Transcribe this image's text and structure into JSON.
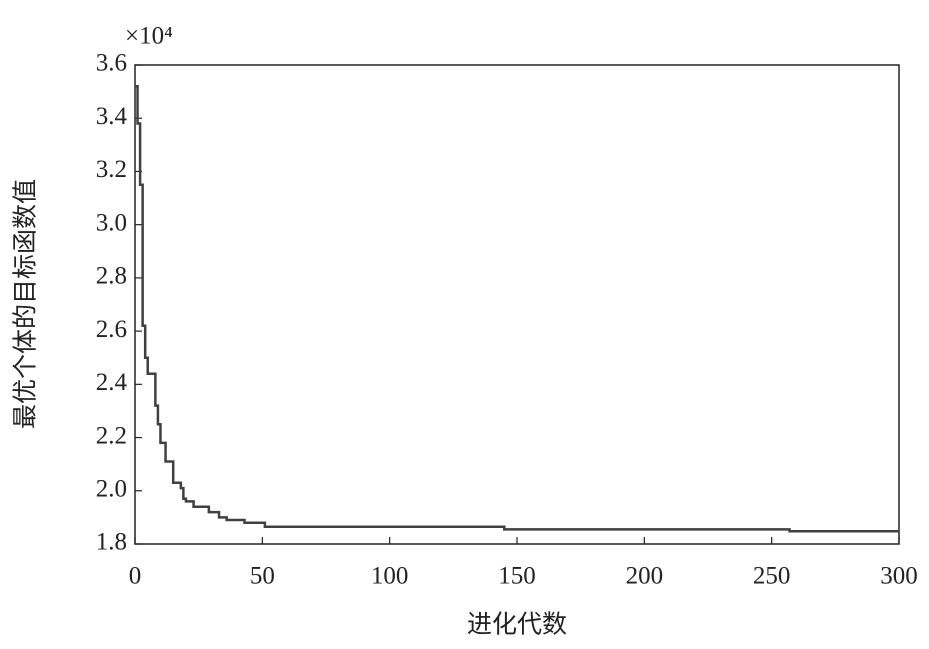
{
  "chart_data": {
    "type": "line",
    "x_label": "进化代数",
    "y_label": "最优个体的目标函数值",
    "y_multiplier": "×10⁴",
    "xlim": [
      0,
      300
    ],
    "xticks": [
      0,
      50,
      100,
      150,
      200,
      250,
      300
    ],
    "ylim": [
      1.8,
      3.6
    ],
    "yticks": [
      1.8,
      {
        "value": 2,
        "label": "2.0"
      },
      2.2,
      2.4,
      2.6,
      2.8,
      {
        "value": 3,
        "label": "3.0"
      },
      3.2,
      3.4,
      3.6
    ],
    "grid": false,
    "series": [
      {
        "color": "#404040",
        "x": [
          0,
          1,
          1,
          2,
          2,
          3,
          3,
          4,
          4,
          5,
          5,
          8,
          8,
          9,
          9,
          10,
          10,
          12,
          12,
          15,
          15,
          18,
          18,
          19,
          19,
          20,
          20,
          23,
          23,
          29,
          29,
          33,
          33,
          36,
          36,
          43,
          43,
          51,
          51,
          145,
          145,
          257,
          257,
          300
        ],
        "values": [
          3.52,
          3.52,
          3.38,
          3.38,
          3.15,
          3.15,
          2.62,
          2.62,
          2.5,
          2.5,
          2.44,
          2.44,
          2.32,
          2.32,
          2.25,
          2.25,
          2.18,
          2.18,
          2.11,
          2.11,
          2.03,
          2.03,
          2.01,
          2.01,
          1.97,
          1.97,
          1.96,
          1.96,
          1.94,
          1.94,
          1.92,
          1.92,
          1.9,
          1.9,
          1.89,
          1.89,
          1.88,
          1.88,
          1.865,
          1.865,
          1.855,
          1.855,
          1.848,
          1.848
        ]
      }
    ]
  }
}
